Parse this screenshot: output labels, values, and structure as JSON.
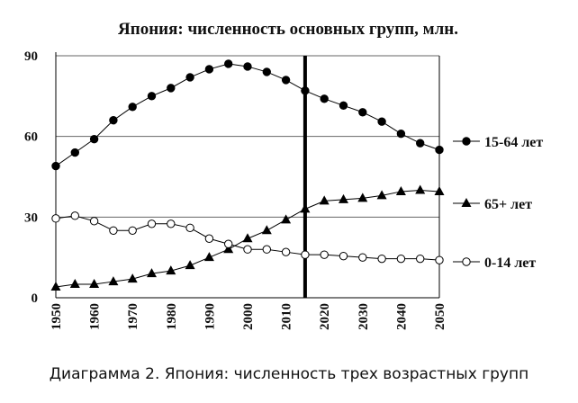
{
  "caption": "Диаграмма 2. Япония: численность трех возрастных групп",
  "chart_data": {
    "type": "line",
    "title": "Япония: численность основных групп, млн.",
    "x": [
      1950,
      1955,
      1960,
      1965,
      1970,
      1975,
      1980,
      1985,
      1990,
      1995,
      2000,
      2005,
      2010,
      2015,
      2020,
      2025,
      2030,
      2035,
      2040,
      2045,
      2050
    ],
    "x_tick_labels": [
      "1950",
      "1960",
      "1970",
      "1980",
      "1990",
      "2000",
      "2010",
      "2020",
      "2030",
      "2040",
      "2050"
    ],
    "y_tick_labels": [
      "0",
      "30",
      "60",
      "90"
    ],
    "ylim": [
      0,
      90
    ],
    "grid": "horizontal",
    "legend_position": "right",
    "vertical_marker_x": 2015,
    "series": [
      {
        "name": "15-64 лет",
        "marker": "filled-circle",
        "values": [
          49,
          54,
          59,
          66,
          71,
          75,
          78,
          82,
          85,
          87,
          86,
          84,
          81,
          77,
          74,
          71.5,
          69,
          65.5,
          61,
          57.5,
          55
        ]
      },
      {
        "name": "65+ лет",
        "marker": "filled-triangle",
        "values": [
          4,
          5,
          5,
          6,
          7,
          9,
          10,
          12,
          15,
          18,
          22,
          25,
          29,
          33,
          36,
          36.5,
          37,
          38,
          39.5,
          40,
          39.5
        ]
      },
      {
        "name": "0-14 лет",
        "marker": "open-circle",
        "values": [
          29.5,
          30.5,
          28.5,
          25,
          25,
          27.5,
          27.5,
          26,
          22,
          20,
          18,
          18,
          17,
          16,
          16,
          15.5,
          15,
          14.5,
          14.5,
          14.5,
          14
        ]
      }
    ]
  }
}
